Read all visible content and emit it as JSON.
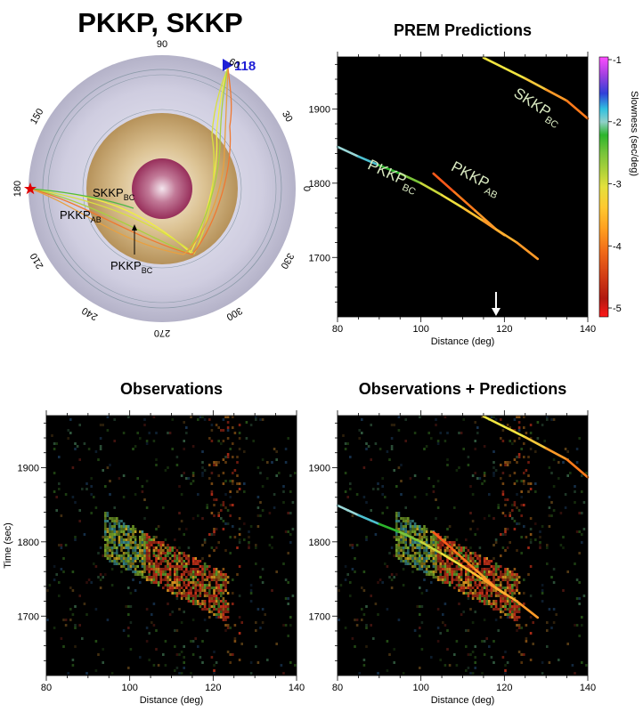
{
  "figure_title": "PKKP, SKKP",
  "globe": {
    "station_distance_label": "118",
    "angle_labels": [
      "90",
      "60",
      "30",
      "0",
      "330",
      "300",
      "270",
      "240",
      "210",
      "180",
      "150"
    ],
    "angle_values": [
      90,
      60,
      30,
      0,
      330,
      300,
      270,
      240,
      210,
      180,
      150
    ],
    "phase_labels": [
      {
        "main": "SKKP",
        "sub": "BC"
      },
      {
        "main": "PKKP",
        "sub": "AB"
      },
      {
        "main": "PKKP",
        "sub": "BC"
      }
    ],
    "colors": {
      "mantle": "#b8b6cc",
      "outer_core": "#c4a46e",
      "inner_core": "#a2466a",
      "source_star": "#e00000",
      "station": "#1f1fd6"
    }
  },
  "colorbar": {
    "title": "Slowness (sec/deg)",
    "tick_labels": [
      "-1",
      "-2",
      "-3",
      "-4",
      "-5"
    ],
    "tick_values": [
      -1,
      -2,
      -3,
      -4,
      -5
    ],
    "colors_top_to_bottom": [
      "#ff4dff",
      "#8a2be2",
      "#2a3fd8",
      "#2ec4e0",
      "#8fd0d0",
      "#2cb52c",
      "#7cc63a",
      "#b0d23a",
      "#e4e03c",
      "#f5d23a",
      "#ffb030",
      "#f57c1c",
      "#e04a14",
      "#c81a12",
      "#ff1a1a"
    ]
  },
  "chart_data": [
    {
      "id": "prem",
      "type": "line",
      "title": "PREM Predictions",
      "xlabel": "Distance (deg)",
      "ylabel": "",
      "xlim": [
        80,
        140
      ],
      "ylim": [
        1620,
        1970
      ],
      "xticks": [
        80,
        100,
        120,
        140
      ],
      "yticks": [
        1700,
        1800,
        1900
      ],
      "background": "#000000",
      "arrow_at_distance": 118,
      "series": [
        {
          "name": "SKKP",
          "sub": "BC",
          "x": [
            115,
            120,
            125,
            130,
            135,
            140
          ],
          "y": [
            1969,
            1955,
            1941,
            1926,
            1911,
            1887
          ]
        },
        {
          "name": "PKKP",
          "sub": "BC",
          "x": [
            80,
            85,
            90,
            95,
            100,
            105,
            110,
            115,
            120
          ],
          "y": [
            1849,
            1836,
            1824,
            1813,
            1800,
            1784,
            1767,
            1749,
            1730
          ]
        },
        {
          "name": "PKKP",
          "sub": "AB",
          "x": [
            103,
            108,
            113,
            118,
            123,
            128
          ],
          "y": [
            1813,
            1788,
            1763,
            1738,
            1720,
            1698
          ]
        }
      ]
    },
    {
      "id": "obs",
      "type": "heatmap",
      "title": "Observations",
      "xlabel": "Distance (deg)",
      "ylabel": "Time (sec)",
      "xlim": [
        80,
        140
      ],
      "ylim": [
        1620,
        1970
      ],
      "xticks": [
        80,
        100,
        120,
        140
      ],
      "yticks": [
        1700,
        1800,
        1900
      ]
    },
    {
      "id": "obspred",
      "type": "heatmap",
      "title": "Observations + Predictions",
      "xlabel": "Distance (deg)",
      "ylabel": "",
      "xlim": [
        80,
        140
      ],
      "ylim": [
        1620,
        1970
      ],
      "xticks": [
        80,
        100,
        120,
        140
      ],
      "yticks": [
        1700,
        1800,
        1900
      ]
    }
  ]
}
